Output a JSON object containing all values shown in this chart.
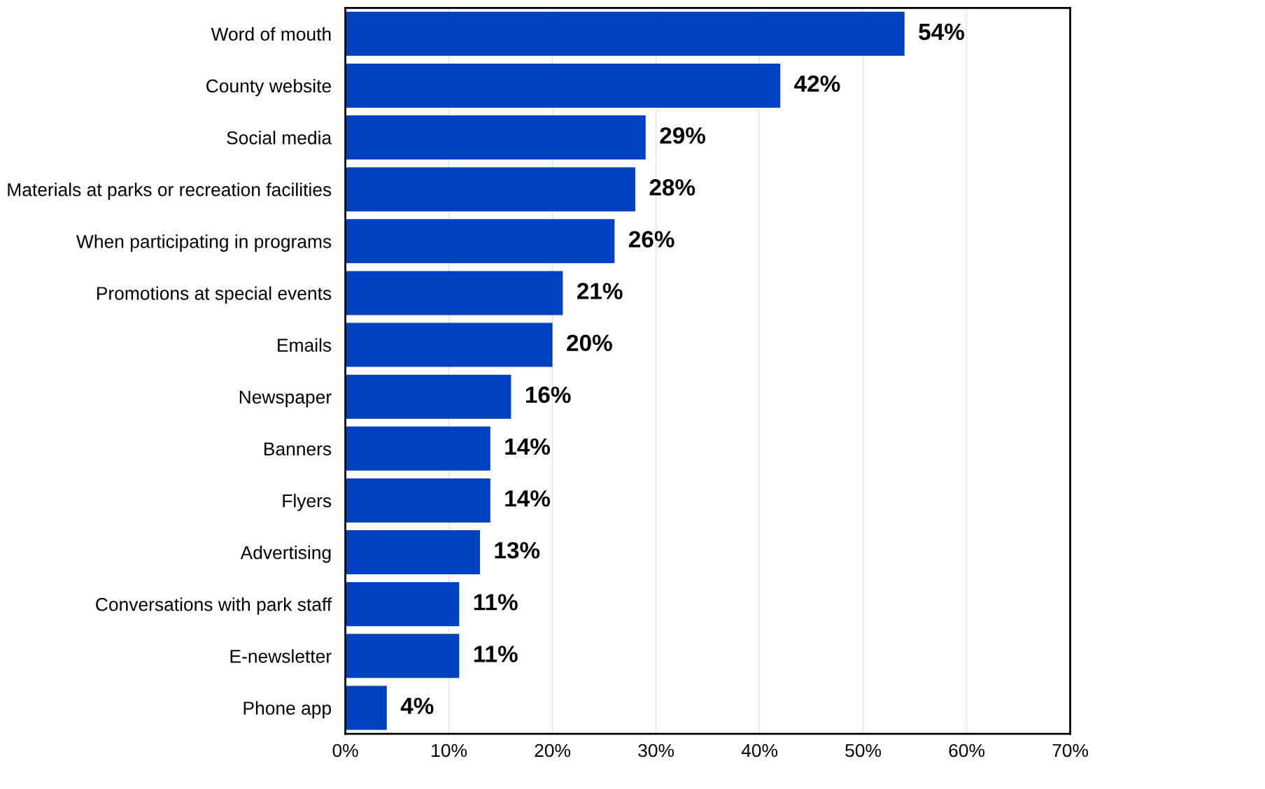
{
  "chart_data": {
    "type": "bar",
    "orientation": "horizontal",
    "categories": [
      "Word of mouth",
      "County website",
      "Social media",
      "Materials at parks or recreation facilities",
      "When participating in programs",
      "Promotions at special events",
      "Emails",
      "Newspaper",
      "Banners",
      "Flyers",
      "Advertising",
      "Conversations with park staff",
      "E-newsletter",
      "Phone app"
    ],
    "values": [
      54,
      42,
      29,
      28,
      26,
      21,
      20,
      16,
      14,
      14,
      13,
      11,
      11,
      4
    ],
    "value_labels": [
      "54%",
      "42%",
      "29%",
      "28%",
      "26%",
      "21%",
      "20%",
      "16%",
      "14%",
      "14%",
      "13%",
      "11%",
      "11%",
      "4%"
    ],
    "color": "#0041c2",
    "xlim": [
      0,
      70
    ],
    "xticks": [
      {
        "value": 0,
        "label": "0%"
      },
      {
        "value": 10,
        "label": "10%"
      },
      {
        "value": 20,
        "label": "20%"
      },
      {
        "value": 30,
        "label": "30%"
      },
      {
        "value": 40,
        "label": "40%"
      },
      {
        "value": 50,
        "label": "50%"
      },
      {
        "value": 60,
        "label": "60%"
      },
      {
        "value": 70,
        "label": "70%"
      }
    ],
    "grid": "x",
    "legend": false
  }
}
